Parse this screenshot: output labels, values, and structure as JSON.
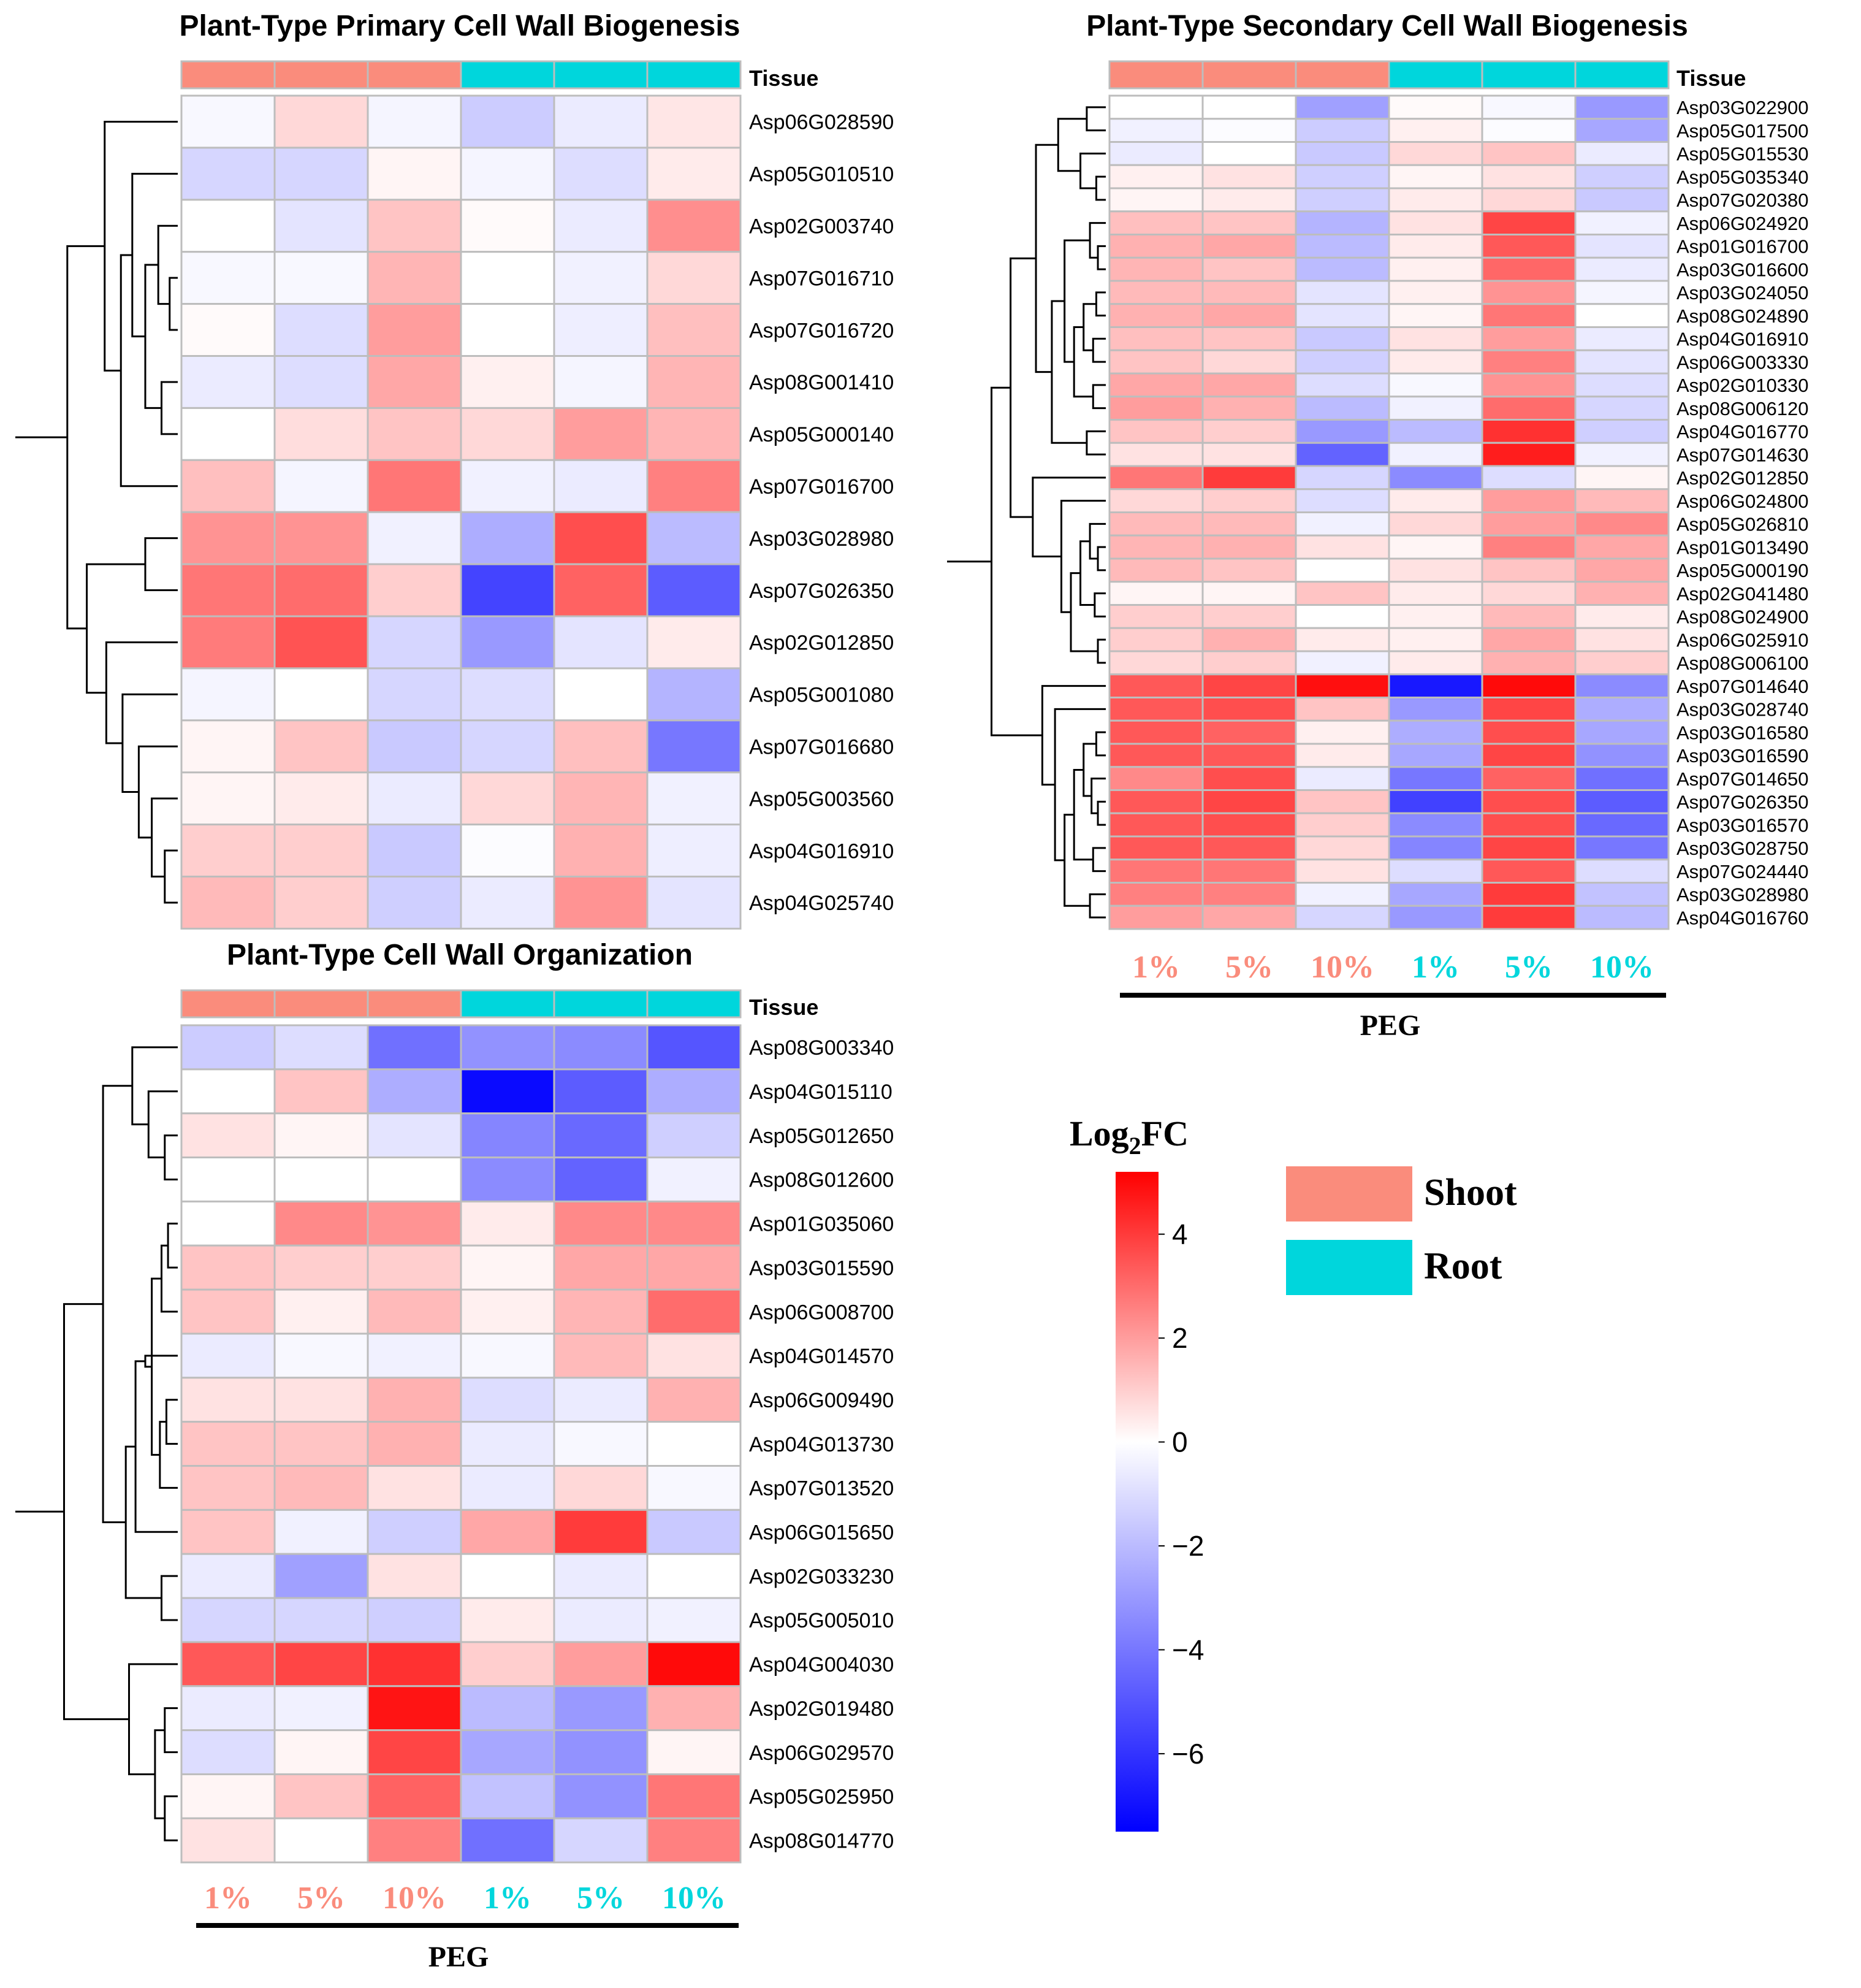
{
  "chart_data": [
    {
      "type": "heatmap",
      "id": "primary",
      "title": "Plant-Type Primary Cell Wall Biogenesis",
      "tissue_label": "Tissue",
      "columns": [
        "1%",
        "5%",
        "10%",
        "1%",
        "5%",
        "10%"
      ],
      "column_tissue": [
        "Shoot",
        "Shoot",
        "Shoot",
        "Root",
        "Root",
        "Root"
      ],
      "xlabel": "",
      "rows": [
        "Asp06G028590",
        "Asp05G010510",
        "Asp02G003740",
        "Asp07G016710",
        "Asp07G016720",
        "Asp08G001410",
        "Asp05G000140",
        "Asp07G016700",
        "Asp03G028980",
        "Asp07G026350",
        "Asp02G012850",
        "Asp05G001080",
        "Asp07G016680",
        "Asp05G003560",
        "Asp04G016910",
        "Asp04G025740"
      ],
      "values": [
        [
          -0.2,
          0.8,
          -0.3,
          -1.5,
          -0.6,
          0.5
        ],
        [
          -1.2,
          -1.2,
          0.2,
          -0.3,
          -1.0,
          0.4
        ],
        [
          0.0,
          -0.8,
          1.2,
          0.1,
          -0.6,
          2.3
        ],
        [
          -0.2,
          -0.2,
          1.5,
          0.0,
          -0.4,
          0.8
        ],
        [
          0.1,
          -1.0,
          2.0,
          0.0,
          -0.5,
          1.3
        ],
        [
          -0.6,
          -1.0,
          1.8,
          0.3,
          -0.3,
          1.5
        ],
        [
          0.0,
          0.7,
          1.2,
          0.8,
          2.0,
          1.5
        ],
        [
          1.3,
          -0.3,
          2.8,
          -0.4,
          -0.6,
          2.6
        ],
        [
          2.2,
          2.2,
          -0.4,
          -2.4,
          3.6,
          -2.0
        ],
        [
          2.8,
          3.0,
          1.0,
          -5.5,
          3.2,
          -4.8
        ],
        [
          2.7,
          3.5,
          -1.2,
          -3.0,
          -0.8,
          0.4
        ],
        [
          -0.3,
          0.0,
          -1.2,
          -1.0,
          0.0,
          -2.2
        ],
        [
          0.2,
          1.2,
          -1.6,
          -1.2,
          1.3,
          -4.0
        ],
        [
          0.2,
          0.4,
          -0.6,
          0.8,
          1.5,
          -0.4
        ],
        [
          1.0,
          1.0,
          -1.6,
          -0.1,
          1.6,
          -0.5
        ],
        [
          1.4,
          1.0,
          -1.4,
          -0.6,
          2.2,
          -0.8
        ]
      ]
    },
    {
      "type": "heatmap",
      "id": "secondary",
      "title": "Plant-Type Secondary Cell Wall Biogenesis",
      "tissue_label": "Tissue",
      "columns": [
        "1%",
        "5%",
        "10%",
        "1%",
        "5%",
        "10%"
      ],
      "column_tissue": [
        "Shoot",
        "Shoot",
        "Shoot",
        "Root",
        "Root",
        "Root"
      ],
      "xlabel": "PEG",
      "rows": [
        "Asp03G022900",
        "Asp05G017500",
        "Asp05G015530",
        "Asp05G035340",
        "Asp07G020380",
        "Asp06G024920",
        "Asp01G016700",
        "Asp03G016600",
        "Asp03G024050",
        "Asp08G024890",
        "Asp04G016910",
        "Asp06G003330",
        "Asp02G010330",
        "Asp08G006120",
        "Asp04G016770",
        "Asp07G014630",
        "Asp02G012850",
        "Asp06G024800",
        "Asp05G026810",
        "Asp01G013490",
        "Asp05G000190",
        "Asp02G041480",
        "Asp08G024900",
        "Asp06G025910",
        "Asp08G006100",
        "Asp07G014640",
        "Asp03G028740",
        "Asp03G016580",
        "Asp03G016590",
        "Asp07G014650",
        "Asp07G026350",
        "Asp03G016570",
        "Asp03G028750",
        "Asp07G024440",
        "Asp03G028980",
        "Asp04G016760"
      ],
      "values": [
        [
          0.0,
          0.0,
          -2.8,
          0.1,
          -0.2,
          -3.0
        ],
        [
          -0.4,
          -0.1,
          -1.5,
          0.3,
          -0.1,
          -2.6
        ],
        [
          -0.6,
          0.0,
          -1.6,
          0.8,
          1.2,
          -0.6
        ],
        [
          0.3,
          0.6,
          -1.4,
          0.2,
          0.6,
          -1.4
        ],
        [
          0.2,
          0.4,
          -1.4,
          0.4,
          0.8,
          -1.6
        ],
        [
          1.3,
          1.2,
          -2.2,
          0.6,
          3.8,
          -0.4
        ],
        [
          1.6,
          1.8,
          -2.0,
          0.4,
          3.4,
          -0.8
        ],
        [
          1.5,
          1.2,
          -2.0,
          0.3,
          3.1,
          -0.6
        ],
        [
          1.4,
          1.4,
          -0.8,
          0.3,
          2.2,
          -0.3
        ],
        [
          1.6,
          1.8,
          -0.8,
          0.2,
          2.8,
          0.0
        ],
        [
          1.3,
          1.2,
          -1.6,
          0.6,
          2.0,
          -0.6
        ],
        [
          1.2,
          0.8,
          -1.4,
          0.4,
          2.6,
          -0.8
        ],
        [
          1.8,
          1.8,
          -1.0,
          -0.2,
          2.2,
          -1.0
        ],
        [
          2.0,
          1.6,
          -2.0,
          -0.4,
          3.0,
          -1.2
        ],
        [
          1.2,
          1.0,
          -3.0,
          -2.0,
          4.2,
          -1.4
        ],
        [
          0.6,
          0.6,
          -4.6,
          -0.4,
          4.6,
          -0.4
        ],
        [
          2.8,
          4.0,
          -1.2,
          -3.4,
          -1.0,
          0.2
        ],
        [
          0.8,
          1.0,
          -1.0,
          0.4,
          2.0,
          1.4
        ],
        [
          1.4,
          1.4,
          -0.4,
          0.8,
          2.0,
          2.4
        ],
        [
          1.5,
          1.6,
          0.6,
          0.2,
          2.6,
          1.8
        ],
        [
          1.4,
          1.2,
          0.0,
          0.6,
          1.2,
          1.8
        ],
        [
          0.2,
          0.2,
          1.2,
          0.4,
          0.8,
          1.6
        ],
        [
          1.0,
          1.0,
          0.0,
          0.3,
          1.4,
          0.4
        ],
        [
          1.0,
          1.6,
          0.4,
          0.3,
          1.8,
          0.6
        ],
        [
          0.8,
          1.0,
          -0.4,
          0.4,
          1.6,
          1.0
        ],
        [
          3.4,
          3.8,
          4.9,
          -6.8,
          5.0,
          -3.4
        ],
        [
          3.4,
          3.6,
          1.2,
          -3.0,
          3.8,
          -2.4
        ],
        [
          3.4,
          3.2,
          0.3,
          -2.4,
          3.6,
          -2.6
        ],
        [
          3.4,
          3.4,
          0.4,
          -2.6,
          3.8,
          -3.2
        ],
        [
          2.4,
          3.6,
          -0.6,
          -4.0,
          3.2,
          -4.2
        ],
        [
          3.4,
          3.8,
          1.2,
          -5.6,
          3.6,
          -4.8
        ],
        [
          3.4,
          3.6,
          1.0,
          -3.4,
          3.6,
          -4.4
        ],
        [
          3.4,
          3.4,
          0.8,
          -3.6,
          3.8,
          -4.0
        ],
        [
          2.8,
          2.8,
          0.6,
          -1.0,
          3.4,
          -1.0
        ],
        [
          2.6,
          2.6,
          -0.4,
          -2.6,
          4.0,
          -1.8
        ],
        [
          2.0,
          1.8,
          -1.2,
          -3.0,
          4.0,
          -2.0
        ]
      ]
    },
    {
      "type": "heatmap",
      "id": "organization",
      "title": "Plant-Type Cell Wall Organization",
      "tissue_label": "Tissue",
      "columns": [
        "1%",
        "5%",
        "10%",
        "1%",
        "5%",
        "10%"
      ],
      "column_tissue": [
        "Shoot",
        "Shoot",
        "Shoot",
        "Root",
        "Root",
        "Root"
      ],
      "xlabel": "PEG",
      "rows": [
        "Asp08G003340",
        "Asp04G015110",
        "Asp05G012650",
        "Asp08G012600",
        "Asp01G035060",
        "Asp03G015590",
        "Asp06G008700",
        "Asp04G014570",
        "Asp06G009490",
        "Asp04G013730",
        "Asp07G013520",
        "Asp06G015650",
        "Asp02G033230",
        "Asp05G005010",
        "Asp04G004030",
        "Asp02G019480",
        "Asp06G029570",
        "Asp05G025950",
        "Asp08G014770"
      ],
      "values": [
        [
          -1.5,
          -1.0,
          -4.2,
          -3.2,
          -3.4,
          -5.0
        ],
        [
          0.0,
          1.2,
          -2.4,
          -7.2,
          -4.8,
          -2.4
        ],
        [
          0.6,
          0.2,
          -0.8,
          -3.6,
          -4.4,
          -1.4
        ],
        [
          0.0,
          0.0,
          0.0,
          -3.4,
          -4.6,
          -0.4
        ],
        [
          0.0,
          2.4,
          2.2,
          0.4,
          2.4,
          2.4
        ],
        [
          1.2,
          1.0,
          1.0,
          0.2,
          1.8,
          1.8
        ],
        [
          1.2,
          0.3,
          1.4,
          0.3,
          1.5,
          3.0
        ],
        [
          -0.6,
          -0.2,
          -0.4,
          -0.2,
          1.4,
          0.6
        ],
        [
          0.6,
          0.6,
          1.6,
          -1.0,
          -0.6,
          1.6
        ],
        [
          1.2,
          1.2,
          1.6,
          -0.6,
          -0.2,
          0.0
        ],
        [
          1.2,
          1.4,
          0.6,
          -0.6,
          0.8,
          -0.2
        ],
        [
          1.2,
          -0.4,
          -1.4,
          1.8,
          4.0,
          -1.6
        ],
        [
          -0.6,
          -2.8,
          0.6,
          0.0,
          -0.6,
          0.0
        ],
        [
          -1.2,
          -1.2,
          -1.4,
          0.4,
          -0.6,
          -0.4
        ],
        [
          3.4,
          3.8,
          4.2,
          1.0,
          2.0,
          5.0
        ],
        [
          -0.6,
          -0.4,
          4.8,
          -2.0,
          -3.0,
          1.6
        ],
        [
          -1.0,
          0.2,
          3.8,
          -2.6,
          -3.2,
          0.2
        ],
        [
          0.2,
          1.2,
          3.2,
          -1.8,
          -3.2,
          2.8
        ],
        [
          0.6,
          0.0,
          2.6,
          -4.2,
          -1.2,
          2.6
        ]
      ]
    }
  ],
  "colorbar": {
    "title_main": "Log",
    "title_sub": "2",
    "title_end": "FC",
    "min": -7.5,
    "max": 5.2,
    "ticks": [
      4,
      2,
      0,
      -2,
      -4,
      -6
    ],
    "tick_labels": [
      "4",
      "2",
      "0",
      "−2",
      "−4",
      "−6"
    ]
  },
  "legend": [
    {
      "label": "Shoot",
      "color": "#fa8c7c"
    },
    {
      "label": "Root",
      "color": "#00d6dc"
    }
  ],
  "colors": {
    "high": "#ff0000",
    "mid": "#ffffff",
    "low": "#0000ff",
    "shoot": "#fa8c7c",
    "root": "#00d6dc",
    "cell_border": "#bdbdbd"
  }
}
